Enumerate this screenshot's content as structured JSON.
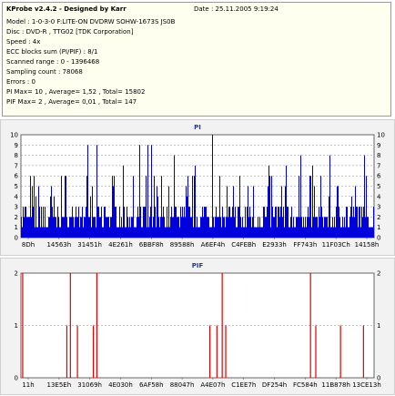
{
  "header": {
    "title": "KProbe v2.4.2 - Designed by Karr",
    "date": "Date : 25.11.2005 9:19:24",
    "lines": [
      "Model : 1-0-3-0 F:LITE-ON DVDRW SOHW-1673S JS0B",
      "Disc : DVD-R , TTG02 [TDK Corporation]",
      "Speed : 4x",
      "ECC blocks sum (PI/PIF) : 8/1",
      "Scanned range : 0 - 1396468",
      "Sampling count : 78068",
      "Errors : 0",
      "PI Max= 10 , Average= 1,52 , Total= 15802",
      "PIF Max= 2 , Average= 0,01 , Total= 147"
    ]
  },
  "chart_data": [
    {
      "type": "bar",
      "title": "PI",
      "ylim": [
        0,
        10
      ],
      "yticks": [
        "0",
        "1",
        "2",
        "3",
        "4",
        "5",
        "6",
        "7",
        "8",
        "9",
        "10"
      ],
      "xticks": [
        "8Dh",
        "14563h",
        "31451h",
        "4E261h",
        "6BBF8h",
        "89588h",
        "A6EF4h",
        "C4FEBh",
        "E2933h",
        "FF743h",
        "11F03Ch",
        "14158h"
      ],
      "color": "#0000dd",
      "max": 10,
      "average": 1.52,
      "grid": true
    },
    {
      "type": "bar",
      "title": "PIF",
      "ylim": [
        0,
        2
      ],
      "yticks": [
        "0",
        "1",
        "2"
      ],
      "xticks": [
        "11h",
        "13E5Eh",
        "31069h",
        "4E030h",
        "6AF58h",
        "88047h",
        "A4E07h",
        "C1EE7h",
        "DF254h",
        "FC584h",
        "11B878h",
        "13CE13h"
      ],
      "color": "#dd0000",
      "max": 2,
      "average": 0.01,
      "spikes": [
        {
          "x": 0.005,
          "v": 2
        },
        {
          "x": 0.13,
          "v": 1
        },
        {
          "x": 0.14,
          "v": 2
        },
        {
          "x": 0.16,
          "v": 1
        },
        {
          "x": 0.205,
          "v": 1
        },
        {
          "x": 0.215,
          "v": 2
        },
        {
          "x": 0.535,
          "v": 1
        },
        {
          "x": 0.555,
          "v": 1
        },
        {
          "x": 0.57,
          "v": 2
        },
        {
          "x": 0.58,
          "v": 1
        },
        {
          "x": 0.82,
          "v": 2
        },
        {
          "x": 0.835,
          "v": 1
        },
        {
          "x": 0.905,
          "v": 1
        },
        {
          "x": 0.97,
          "v": 1
        }
      ],
      "grid": true
    }
  ]
}
